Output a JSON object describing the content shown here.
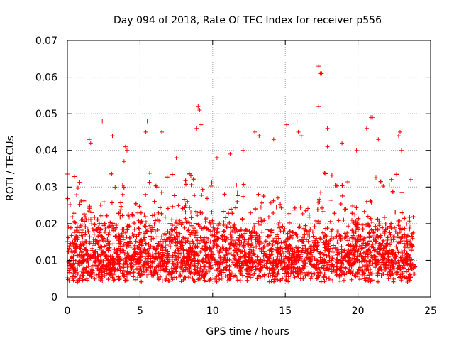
{
  "chart_data": {
    "type": "scatter",
    "title": "Day 094 of 2018, Rate Of TEC Index for receiver p556",
    "xlabel": "GPS time / hours",
    "ylabel": "ROTI / TECUs",
    "xlim": [
      0,
      25
    ],
    "ylim": [
      0,
      0.07
    ],
    "xticks": [
      0,
      5,
      10,
      15,
      20,
      25
    ],
    "xtick_labels": [
      "0",
      "5",
      "10",
      "15",
      "20",
      "25"
    ],
    "yticks": [
      0,
      0.01,
      0.02,
      0.03,
      0.04,
      0.05,
      0.06,
      0.07
    ],
    "ytick_labels": [
      "0",
      "0.01",
      "0.02",
      "0.03",
      "0.04",
      "0.05",
      "0.06",
      "0.07"
    ],
    "grid": true,
    "marker": "+",
    "color": "#ff0000",
    "series": [
      {
        "name": "ROTI",
        "note_points": "dense band of ROTI values between 0.003 and 0.03 TECU/s across 0-24 h; representative outliers listed",
        "points": [
          [
            2.4,
            0.048
          ],
          [
            3.1,
            0.044
          ],
          [
            5.5,
            0.048
          ],
          [
            5.4,
            0.045
          ],
          [
            6.5,
            0.045
          ],
          [
            9.0,
            0.052
          ],
          [
            9.1,
            0.051
          ],
          [
            9.2,
            0.047
          ],
          [
            8.9,
            0.046
          ],
          [
            4.0,
            0.041
          ],
          [
            4.1,
            0.04
          ],
          [
            1.5,
            0.043
          ],
          [
            1.6,
            0.042
          ],
          [
            12.9,
            0.045
          ],
          [
            13.2,
            0.044
          ],
          [
            14.2,
            0.043
          ],
          [
            15.8,
            0.048
          ],
          [
            15.9,
            0.045
          ],
          [
            16.1,
            0.044
          ],
          [
            17.3,
            0.063
          ],
          [
            17.4,
            0.061
          ],
          [
            17.5,
            0.061
          ],
          [
            17.3,
            0.052
          ],
          [
            17.9,
            0.046
          ],
          [
            17.9,
            0.041
          ],
          [
            20.9,
            0.049
          ],
          [
            21.0,
            0.049
          ],
          [
            20.6,
            0.046
          ],
          [
            21.4,
            0.043
          ],
          [
            22.9,
            0.045
          ],
          [
            22.8,
            0.044
          ],
          [
            23.0,
            0.04
          ],
          [
            10.3,
            0.038
          ],
          [
            11.2,
            0.039
          ],
          [
            12.1,
            0.04
          ],
          [
            15.1,
            0.047
          ],
          [
            18.9,
            0.042
          ],
          [
            19.9,
            0.04
          ],
          [
            7.5,
            0.038
          ],
          [
            3.9,
            0.037
          ]
        ]
      }
    ]
  }
}
